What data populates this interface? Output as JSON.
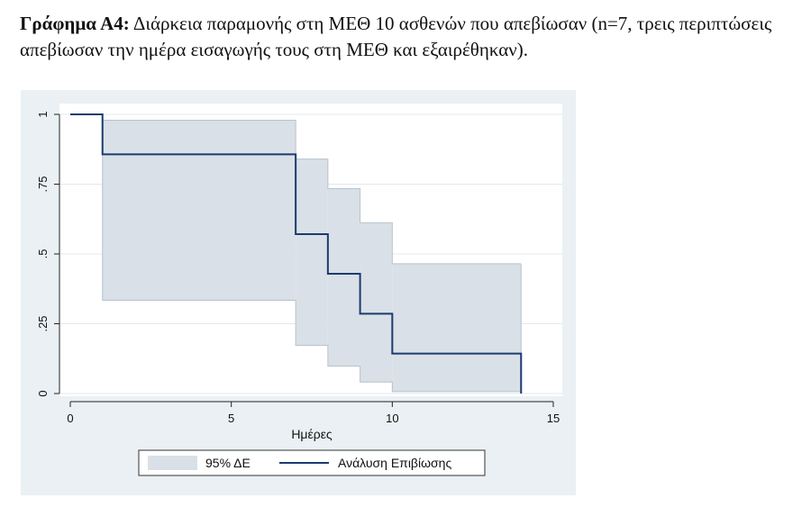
{
  "caption": {
    "label": "Γράφημα Α4:",
    "text": " Διάρκεια παραμονής στη ΜΕΘ 10 ασθενών που απεβίωσαν (n=7, τρεις περιπτώσεις απεβίωσαν την ημέρα εισαγωγής τους στη ΜΕΘ και εξαιρέθηκαν)."
  },
  "chart_data": {
    "type": "line",
    "subtype": "kaplan-meier step with 95% confidence band",
    "xlabel": "Ημέρες",
    "ylabel": "",
    "xlim": [
      0,
      15
    ],
    "ylim": [
      0,
      1
    ],
    "x_ticks": [
      0,
      5,
      10,
      15
    ],
    "x_tick_labels": [
      "0",
      "5",
      "10",
      "15"
    ],
    "y_ticks": [
      0,
      0.25,
      0.5,
      0.75,
      1
    ],
    "y_tick_labels": [
      "0",
      ".25",
      ".5",
      ".75",
      "1"
    ],
    "grid": true,
    "legend_position": "bottom",
    "series": [
      {
        "name": "Ανάλυση Επιβίωσης",
        "color": "#1c3b6e",
        "steps": [
          {
            "x": 0,
            "y": 1
          },
          {
            "x": 1,
            "y": 0.857
          },
          {
            "x": 7,
            "y": 0.571
          },
          {
            "x": 8,
            "y": 0.429
          },
          {
            "x": 9,
            "y": 0.286
          },
          {
            "x": 10,
            "y": 0.143
          },
          {
            "x": 14,
            "y": 0
          }
        ]
      },
      {
        "name": "95% ΔΕ",
        "color": "#d9e0e7",
        "band": [
          {
            "x0": 1,
            "x1": 7,
            "lower": 0.334,
            "upper": 0.979
          },
          {
            "x0": 7,
            "x1": 8,
            "lower": 0.172,
            "upper": 0.84
          },
          {
            "x0": 8,
            "x1": 9,
            "lower": 0.098,
            "upper": 0.734
          },
          {
            "x0": 9,
            "x1": 10,
            "lower": 0.041,
            "upper": 0.612
          },
          {
            "x0": 10,
            "x1": 14,
            "lower": 0.007,
            "upper": 0.465
          }
        ]
      }
    ]
  }
}
